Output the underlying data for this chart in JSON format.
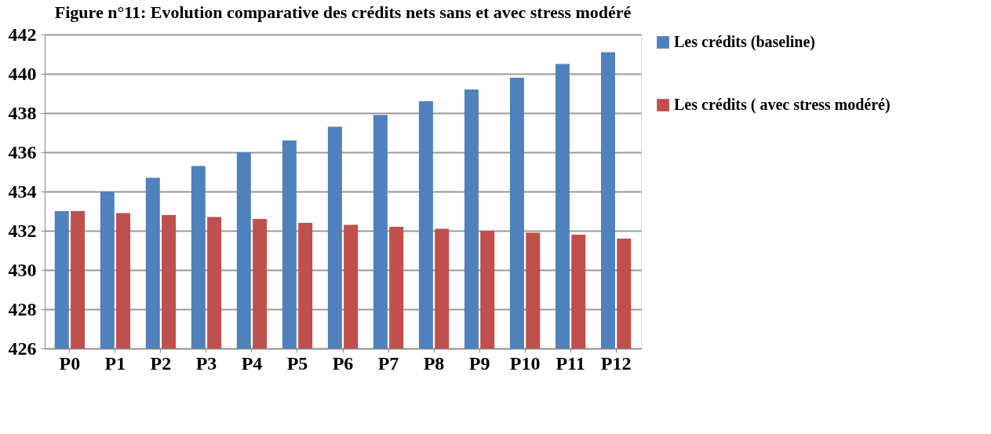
{
  "chart_data": {
    "type": "bar",
    "title": "Figure n°11: Evolution comparative des crédits nets sans et avec stress modéré",
    "categories": [
      "P0",
      "P1",
      "P2",
      "P3",
      "P4",
      "P5",
      "P6",
      "P7",
      "P8",
      "P9",
      "P10",
      "P11",
      "P12"
    ],
    "series": [
      {
        "name": "Les crédits (baseline)",
        "color": "#4f81bd",
        "values": [
          433.0,
          434.0,
          434.7,
          435.3,
          436.0,
          436.6,
          437.3,
          437.9,
          438.6,
          439.2,
          439.8,
          440.5,
          441.1
        ]
      },
      {
        "name": "Les crédits ( avec stress modéré)",
        "color": "#c0504d",
        "values": [
          433.0,
          432.9,
          432.8,
          432.7,
          432.6,
          432.4,
          432.3,
          432.2,
          432.1,
          432.0,
          431.9,
          431.8,
          431.6
        ]
      }
    ],
    "ylim": [
      426,
      442
    ],
    "yticks": [
      426,
      428,
      430,
      432,
      434,
      436,
      438,
      440,
      442
    ],
    "grid": "y",
    "legend": "right"
  }
}
